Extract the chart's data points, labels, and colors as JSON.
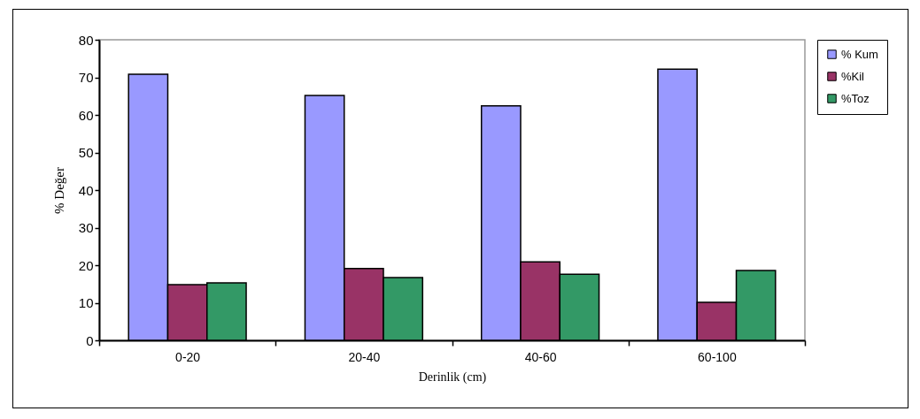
{
  "chart_data": {
    "type": "bar",
    "xlabel": "Derinlik  (cm)",
    "ylabel": "% Değer",
    "categories": [
      "0-20",
      "20-40",
      "40-60",
      "60-100"
    ],
    "series": [
      {
        "name": "% Kum",
        "color": "#9999ff",
        "values": [
          70.8,
          65.2,
          62.4,
          72.2
        ]
      },
      {
        "name": "%Kil",
        "color": "#993366",
        "values": [
          14.8,
          19.1,
          20.9,
          10.1
        ]
      },
      {
        "name": "%Toz",
        "color": "#339966",
        "values": [
          15.3,
          16.7,
          17.6,
          18.6
        ]
      }
    ],
    "ylim": [
      0,
      80
    ],
    "yticks": [
      0,
      10,
      20,
      30,
      40,
      50,
      60,
      70,
      80
    ],
    "grid": false,
    "legend": "right"
  }
}
